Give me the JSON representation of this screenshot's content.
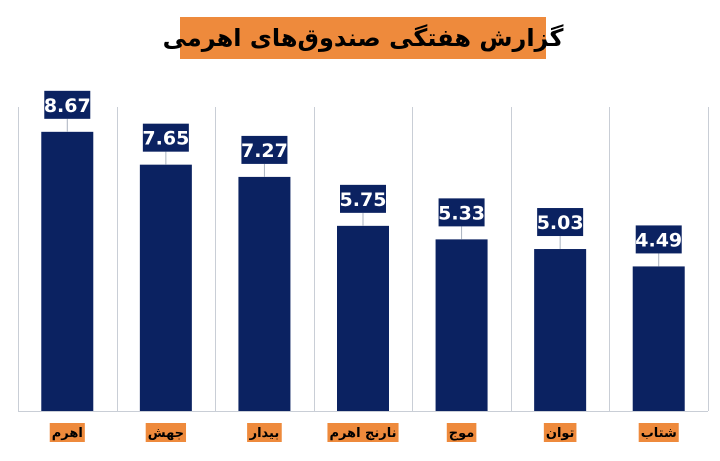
{
  "chart_data": {
    "type": "bar",
    "title": "گزارش هفتگی صندوق‌های اهرمی",
    "categories": [
      "اهرم",
      "جهش",
      "بیدار",
      "نارنج اهرم",
      "موج",
      "توان",
      "شتاب"
    ],
    "values": [
      8.67,
      7.65,
      7.27,
      5.75,
      5.33,
      5.03,
      4.49
    ],
    "ylim": [
      0,
      10
    ],
    "grid": false,
    "colors": {
      "bar": "#0b2261",
      "label_bg": "#ee8a3c",
      "title_bg": "#ee8a3c"
    }
  }
}
